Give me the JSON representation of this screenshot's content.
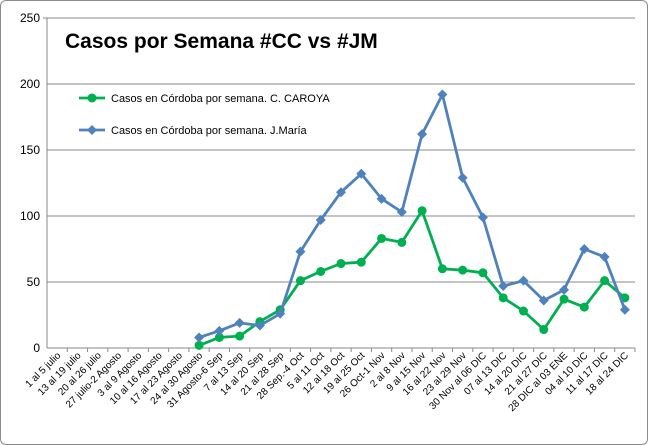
{
  "chart_data": {
    "type": "line",
    "title": "Casos por Semana #CC vs #JM",
    "xlabel": "",
    "ylabel": "",
    "ylim": [
      0,
      250
    ],
    "yticks": [
      0,
      50,
      100,
      150,
      200,
      250
    ],
    "grid": true,
    "legend_position": "top-left",
    "categories": [
      "1 al 5 julio",
      "13 al 19 julio",
      "20 al 26 julio",
      "27 julio-2 Agosto",
      "3 al 9 Agosto",
      "10 al 16 Agosto",
      "17 al 23 Agosto",
      "24 al 30 Agosto",
      "31 Agosto-6 Sep",
      "7 al 13 Sep",
      "14 al 20 Sep",
      "21 al 28 Sep",
      "28 Sep.-4 Oct",
      "5 al 11 Oct",
      "12 al 18 Oct",
      "19 al 25 Oct",
      "26 Oct-1 Nov",
      "2 al 8 Nov",
      "9 al 15 Nov",
      "16 al 22 Nov",
      "23 al 29 Nov",
      "30 Nov al 06 DIC",
      "07 al 13 DIC",
      "14 al 20 DIC",
      "21 al 27 DIC",
      "28 DIC al 03 ENE",
      "04 al 10 DIC",
      "11 al 17 DIC",
      "18 al 24 DIC"
    ],
    "series": [
      {
        "name": "Casos en Córdoba por semana. C. CAROYA",
        "color": "#00b050",
        "marker": "circle",
        "values": [
          null,
          null,
          null,
          null,
          null,
          null,
          null,
          2,
          8,
          9,
          20,
          29,
          51,
          58,
          64,
          65,
          83,
          80,
          104,
          60,
          59,
          57,
          38,
          28,
          14,
          37,
          31,
          51,
          38
        ]
      },
      {
        "name": "Casos en Córdoba por semana. J.María",
        "color": "#4f81bd",
        "marker": "diamond",
        "values": [
          null,
          null,
          null,
          null,
          null,
          null,
          null,
          8,
          13,
          19,
          17,
          26,
          73,
          97,
          118,
          132,
          113,
          103,
          162,
          192,
          129,
          99,
          47,
          51,
          36,
          44,
          75,
          69,
          29
        ]
      }
    ]
  }
}
